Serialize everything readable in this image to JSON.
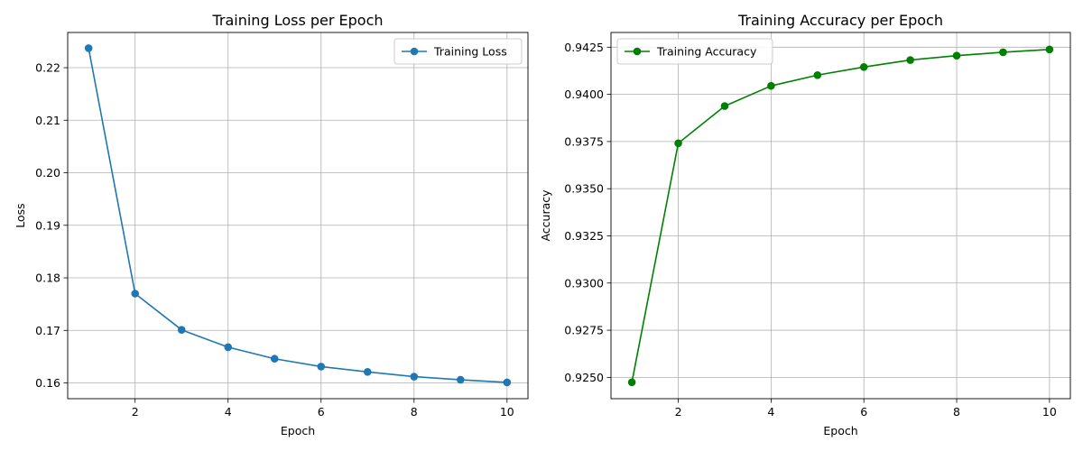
{
  "chart_data": [
    {
      "type": "line",
      "title": "Training Loss per Epoch",
      "xlabel": "Epoch",
      "ylabel": "Loss",
      "xlim": [
        0.55,
        10.45
      ],
      "ylim": [
        0.157,
        0.2267
      ],
      "xticks": [
        2,
        4,
        6,
        8,
        10
      ],
      "yticks": [
        0.16,
        0.17,
        0.18,
        0.19,
        0.2,
        0.21,
        0.22
      ],
      "ytick_labels": [
        "0.16",
        "0.17",
        "0.18",
        "0.19",
        "0.20",
        "0.21",
        "0.22"
      ],
      "grid": true,
      "legend_position": "top-right",
      "x": [
        1,
        2,
        3,
        4,
        5,
        6,
        7,
        8,
        9,
        10
      ],
      "series": [
        {
          "name": "Training Loss",
          "color": "#1f77b4",
          "marker": "circle",
          "values": [
            0.2237,
            0.177,
            0.1701,
            0.1668,
            0.1646,
            0.1631,
            0.1621,
            0.1612,
            0.1606,
            0.1601
          ]
        }
      ]
    },
    {
      "type": "line",
      "title": "Training Accuracy per Epoch",
      "xlabel": "Epoch",
      "ylabel": "Accuracy",
      "xlim": [
        0.55,
        10.45
      ],
      "ylim": [
        0.92387,
        0.94328
      ],
      "xticks": [
        2,
        4,
        6,
        8,
        10
      ],
      "yticks": [
        0.925,
        0.9275,
        0.93,
        0.9325,
        0.935,
        0.9375,
        0.94,
        0.9425
      ],
      "ytick_labels": [
        "0.9250",
        "0.9275",
        "0.9300",
        "0.9325",
        "0.9350",
        "0.9375",
        "0.9400",
        "0.9425"
      ],
      "grid": true,
      "legend_position": "top-left",
      "x": [
        1,
        2,
        3,
        4,
        5,
        6,
        7,
        8,
        9,
        10
      ],
      "series": [
        {
          "name": "Training Accuracy",
          "color": "#008000",
          "marker": "circle",
          "values": [
            0.92474,
            0.93741,
            0.93938,
            0.94045,
            0.94102,
            0.94145,
            0.94182,
            0.94205,
            0.94223,
            0.94238
          ]
        }
      ]
    }
  ]
}
